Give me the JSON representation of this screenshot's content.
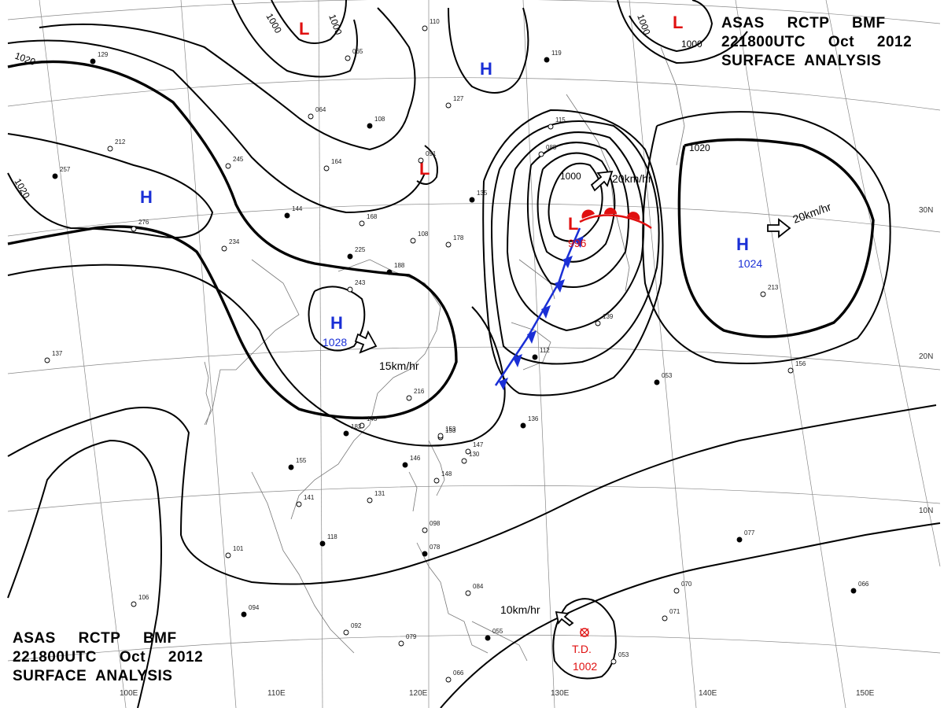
{
  "title": {
    "line1": "ASAS     RCTP     BMF",
    "line2": "221800UTC     Oct     2012",
    "line3": "SURFACE  ANALYSIS"
  },
  "colors": {
    "high": "#1a2fd6",
    "low": "#e01010",
    "isobar": "#000000",
    "grid": "#888888",
    "coast": "#777777"
  },
  "isobar_labels": [
    {
      "text": "1020"
    },
    {
      "text": "1020"
    },
    {
      "text": "1000"
    },
    {
      "text": "1000"
    },
    {
      "text": "1000"
    },
    {
      "text": "1000"
    },
    {
      "text": "1000"
    },
    {
      "text": "1020"
    }
  ],
  "pressure_centers": [
    {
      "type": "H",
      "symbol": "H",
      "value": ""
    },
    {
      "type": "H",
      "symbol": "H",
      "value": ""
    },
    {
      "type": "H",
      "symbol": "H",
      "value": "1028"
    },
    {
      "type": "H",
      "symbol": "H",
      "value": "1024"
    },
    {
      "type": "L",
      "symbol": "L",
      "value": ""
    },
    {
      "type": "L",
      "symbol": "L",
      "value": ""
    },
    {
      "type": "L",
      "symbol": "L",
      "value": ""
    },
    {
      "type": "L",
      "symbol": "L",
      "value": "996"
    },
    {
      "type": "TD",
      "symbol": "T.D.",
      "value": "1002"
    }
  ],
  "motion_vectors": [
    {
      "speed": "15km/hr"
    },
    {
      "speed": "20km/hr"
    },
    {
      "speed": "20km/hr"
    },
    {
      "speed": "10km/hr"
    }
  ],
  "lat_labels": [
    "30N",
    "20N",
    "10N"
  ],
  "lon_labels": [
    "100E",
    "110E",
    "120E",
    "130E",
    "140E",
    "150E"
  ],
  "station_values": [
    "129",
    "065",
    "064",
    "108",
    "127",
    "091",
    "119",
    "115",
    "085",
    "135",
    "164",
    "245",
    "144",
    "168",
    "234",
    "225",
    "108",
    "178",
    "188",
    "243",
    "276",
    "257",
    "212",
    "137",
    "112",
    "139",
    "153",
    "136",
    "143",
    "216",
    "182",
    "153",
    "147",
    "146",
    "130",
    "148",
    "155",
    "141",
    "131",
    "118",
    "101",
    "098",
    "078",
    "084",
    "106",
    "094",
    "092",
    "079",
    "055",
    "066",
    "053",
    "077",
    "070",
    "071",
    "066",
    "156",
    "213",
    "053",
    "110"
  ]
}
